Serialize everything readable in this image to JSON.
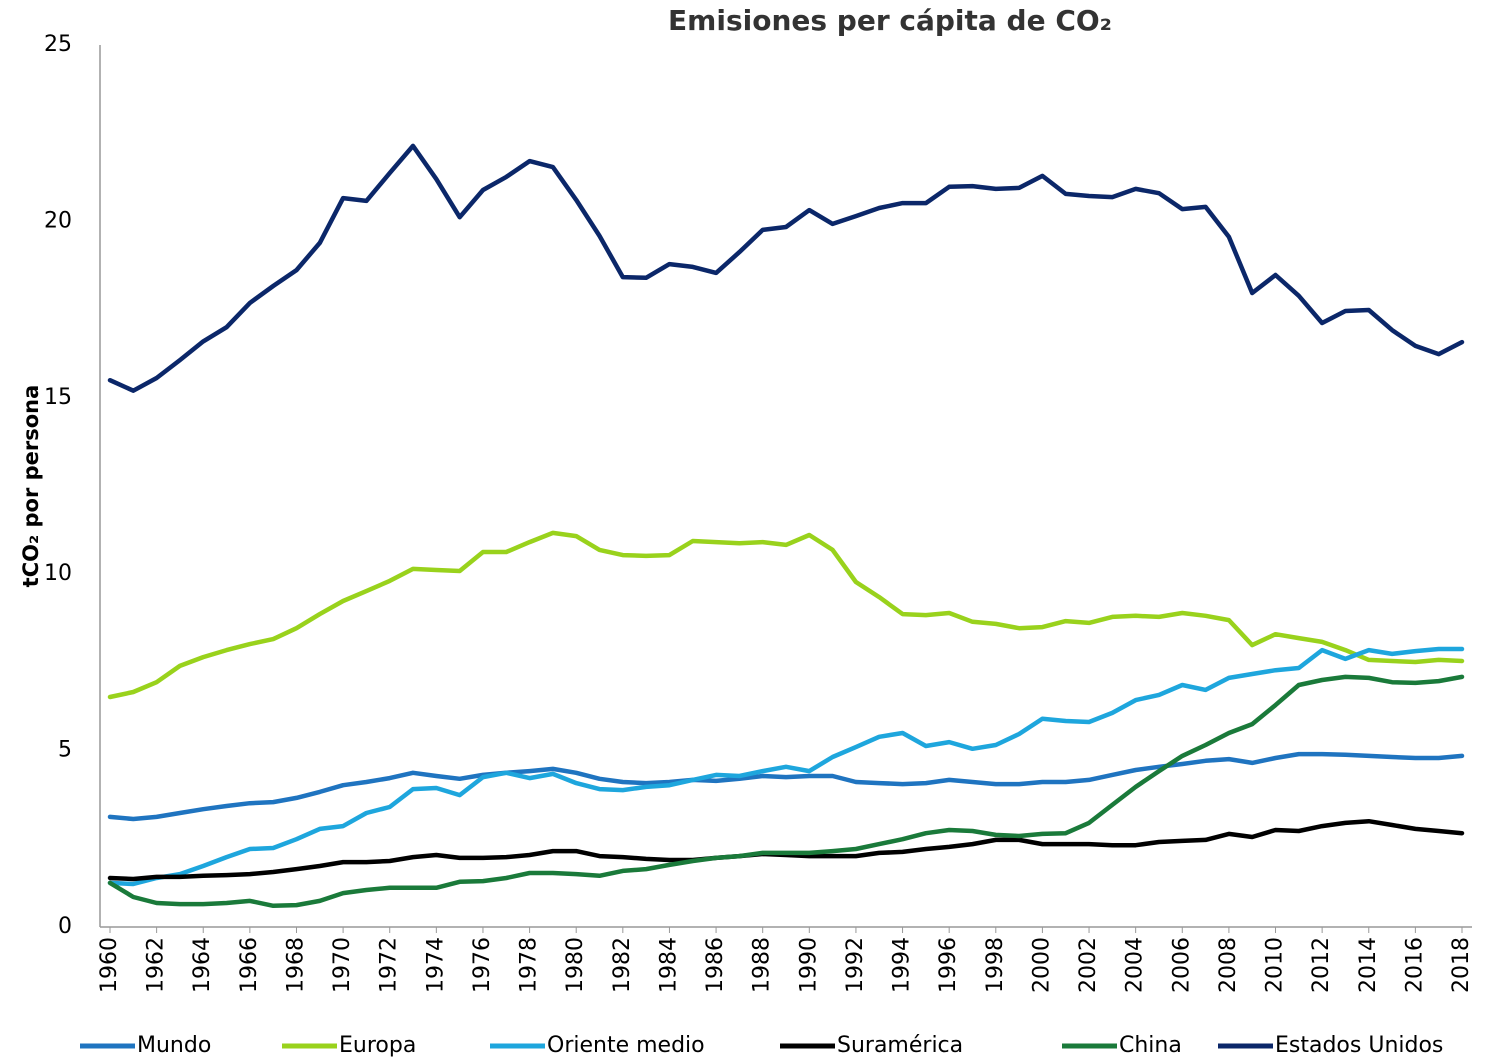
{
  "chart_data": {
    "type": "line",
    "title": "Emisiones per cápita de CO₂",
    "y_label": "tCO₂ por persona",
    "x": [
      1960,
      1961,
      1962,
      1963,
      1964,
      1965,
      1966,
      1967,
      1968,
      1969,
      1970,
      1971,
      1972,
      1973,
      1974,
      1975,
      1976,
      1977,
      1978,
      1979,
      1980,
      1981,
      1982,
      1983,
      1984,
      1985,
      1986,
      1987,
      1988,
      1989,
      1990,
      1991,
      1992,
      1993,
      1994,
      1995,
      1996,
      1997,
      1998,
      1999,
      2000,
      2001,
      2002,
      2003,
      2004,
      2005,
      2006,
      2007,
      2008,
      2009,
      2010,
      2011,
      2012,
      2013,
      2014,
      2015,
      2016,
      2017,
      2018
    ],
    "xlim": [
      1960,
      2018
    ],
    "xticks": [
      1960,
      1962,
      1964,
      1966,
      1968,
      1970,
      1972,
      1974,
      1976,
      1978,
      1980,
      1982,
      1984,
      1986,
      1988,
      1990,
      1992,
      1994,
      1996,
      1998,
      2000,
      2002,
      2004,
      2006,
      2008,
      2010,
      2012,
      2014,
      2016,
      2018
    ],
    "ylim": [
      0,
      25
    ],
    "yticks": [
      0,
      5,
      10,
      15,
      20,
      25
    ],
    "grid": false,
    "legend": "bottom",
    "series": [
      {
        "name": "Mundo",
        "color": "#1f74c0",
        "values": [
          3.12,
          3.06,
          3.12,
          3.23,
          3.34,
          3.43,
          3.51,
          3.54,
          3.66,
          3.83,
          4.02,
          4.11,
          4.22,
          4.37,
          4.28,
          4.2,
          4.31,
          4.37,
          4.42,
          4.48,
          4.37,
          4.2,
          4.11,
          4.08,
          4.11,
          4.17,
          4.14,
          4.2,
          4.28,
          4.25,
          4.28,
          4.28,
          4.11,
          4.08,
          4.05,
          4.08,
          4.17,
          4.11,
          4.05,
          4.05,
          4.11,
          4.11,
          4.17,
          4.31,
          4.45,
          4.54,
          4.62,
          4.71,
          4.76,
          4.65,
          4.79,
          4.9,
          4.9,
          4.88,
          4.85,
          4.82,
          4.79,
          4.79,
          4.85
        ]
      },
      {
        "name": "Europa",
        "color": "#99d21c",
        "values": [
          6.52,
          6.66,
          6.94,
          7.4,
          7.65,
          7.85,
          8.02,
          8.16,
          8.47,
          8.87,
          9.24,
          9.52,
          9.81,
          10.15,
          10.12,
          10.09,
          10.63,
          10.63,
          10.91,
          11.17,
          11.08,
          10.69,
          10.54,
          10.52,
          10.54,
          10.94,
          10.91,
          10.88,
          10.91,
          10.83,
          11.11,
          10.69,
          9.78,
          9.35,
          8.87,
          8.84,
          8.9,
          8.65,
          8.59,
          8.47,
          8.5,
          8.67,
          8.62,
          8.79,
          8.82,
          8.79,
          8.9,
          8.82,
          8.7,
          7.99,
          8.3,
          8.19,
          8.08,
          7.85,
          7.57,
          7.54,
          7.51,
          7.57,
          7.54
        ]
      },
      {
        "name": "Oriente medio",
        "color": "#1ea6dd",
        "values": [
          1.25,
          1.22,
          1.39,
          1.5,
          1.73,
          1.98,
          2.21,
          2.24,
          2.49,
          2.78,
          2.86,
          3.23,
          3.4,
          3.91,
          3.94,
          3.74,
          4.25,
          4.37,
          4.22,
          4.34,
          4.08,
          3.91,
          3.88,
          3.97,
          4.02,
          4.17,
          4.31,
          4.28,
          4.42,
          4.54,
          4.42,
          4.82,
          5.1,
          5.39,
          5.5,
          5.13,
          5.24,
          5.05,
          5.16,
          5.47,
          5.9,
          5.84,
          5.81,
          6.07,
          6.43,
          6.58,
          6.86,
          6.72,
          7.06,
          7.17,
          7.28,
          7.34,
          7.85,
          7.6,
          7.85,
          7.74,
          7.82,
          7.88,
          7.88
        ]
      },
      {
        "name": "Suramérica",
        "color": "#000000",
        "values": [
          1.39,
          1.36,
          1.42,
          1.42,
          1.45,
          1.47,
          1.5,
          1.56,
          1.64,
          1.73,
          1.84,
          1.84,
          1.87,
          1.98,
          2.04,
          1.96,
          1.96,
          1.98,
          2.04,
          2.15,
          2.15,
          2.01,
          1.98,
          1.93,
          1.9,
          1.9,
          1.96,
          2.01,
          2.07,
          2.04,
          2.01,
          2.01,
          2.01,
          2.1,
          2.13,
          2.21,
          2.27,
          2.35,
          2.47,
          2.47,
          2.35,
          2.35,
          2.35,
          2.32,
          2.32,
          2.41,
          2.44,
          2.47,
          2.64,
          2.55,
          2.75,
          2.72,
          2.86,
          2.95,
          3.0,
          2.89,
          2.78,
          2.72,
          2.66
        ]
      },
      {
        "name": "China",
        "color": "#1a7a3a",
        "values": [
          1.25,
          0.85,
          0.68,
          0.65,
          0.65,
          0.68,
          0.74,
          0.6,
          0.62,
          0.74,
          0.96,
          1.05,
          1.11,
          1.11,
          1.11,
          1.28,
          1.3,
          1.39,
          1.53,
          1.53,
          1.5,
          1.45,
          1.59,
          1.64,
          1.76,
          1.87,
          1.96,
          2.01,
          2.1,
          2.1,
          2.1,
          2.15,
          2.21,
          2.35,
          2.49,
          2.66,
          2.75,
          2.72,
          2.61,
          2.58,
          2.64,
          2.66,
          2.95,
          3.46,
          3.97,
          4.42,
          4.85,
          5.16,
          5.5,
          5.75,
          6.29,
          6.86,
          7.0,
          7.09,
          7.06,
          6.94,
          6.92,
          6.97,
          7.09
        ]
      },
      {
        "name": "Estados Unidos",
        "color": "#0b2769",
        "values": [
          15.5,
          15.2,
          15.56,
          16.07,
          16.6,
          17.0,
          17.69,
          18.17,
          18.62,
          19.39,
          20.66,
          20.58,
          21.37,
          22.14,
          21.2,
          20.12,
          20.89,
          21.26,
          21.71,
          21.54,
          20.61,
          19.59,
          18.42,
          18.4,
          18.79,
          18.71,
          18.54,
          19.13,
          19.76,
          19.84,
          20.32,
          19.93,
          20.15,
          20.38,
          20.52,
          20.52,
          20.98,
          21.0,
          20.92,
          20.95,
          21.29,
          20.78,
          20.72,
          20.69,
          20.92,
          20.8,
          20.35,
          20.41,
          19.56,
          17.97,
          18.48,
          17.89,
          17.12,
          17.46,
          17.49,
          16.92,
          16.47,
          16.24,
          16.58
        ]
      }
    ]
  }
}
